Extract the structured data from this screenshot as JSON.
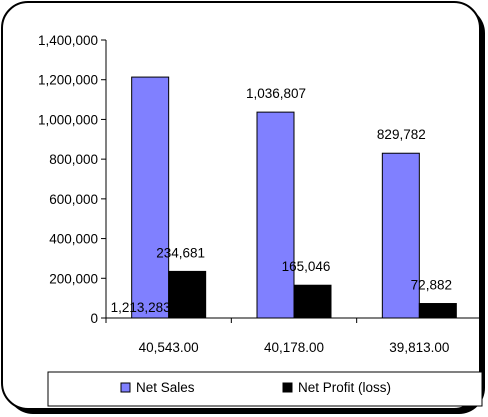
{
  "chart_data": {
    "type": "bar",
    "categories": [
      "40,543.00",
      "40,178.00",
      "39,813.00"
    ],
    "series": [
      {
        "name": "Net Sales",
        "values": [
          1213283,
          1036807,
          829782
        ],
        "labels": [
          "1,213,283",
          "1,036,807",
          "829,782"
        ],
        "color": "#8080ff"
      },
      {
        "name": "Net Profit (loss)",
        "values": [
          234681,
          165046,
          72882
        ],
        "labels": [
          "234,681",
          "165,046",
          "72,882"
        ],
        "color": "#000000"
      }
    ],
    "ylim": [
      0,
      1400000
    ],
    "yticks": [
      0,
      200000,
      400000,
      600000,
      800000,
      1000000,
      1200000,
      1400000
    ],
    "ytick_labels": [
      "0",
      "200,000",
      "400,000",
      "600,000",
      "800,000",
      "1,000,000",
      "1,200,000",
      "1,400,000"
    ],
    "grid": false,
    "legend_position": "bottom"
  }
}
